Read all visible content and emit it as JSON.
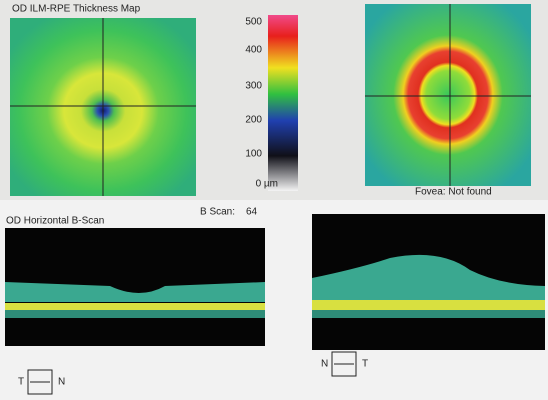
{
  "left_map": {
    "title": "OD ILM-RPE Thickness Map"
  },
  "colorbar": {
    "labels": [
      "500",
      "400",
      "300",
      "200",
      "100",
      "0 µm"
    ]
  },
  "right_map": {
    "fovea": "Fovea: Not found"
  },
  "left_scan": {
    "title": "OD Horizontal B-Scan",
    "bscan_label": "B Scan:",
    "bscan_number": "64",
    "left_dir": "T",
    "right_dir": "N"
  },
  "right_scan": {
    "left_dir": "N",
    "right_dir": "T"
  }
}
